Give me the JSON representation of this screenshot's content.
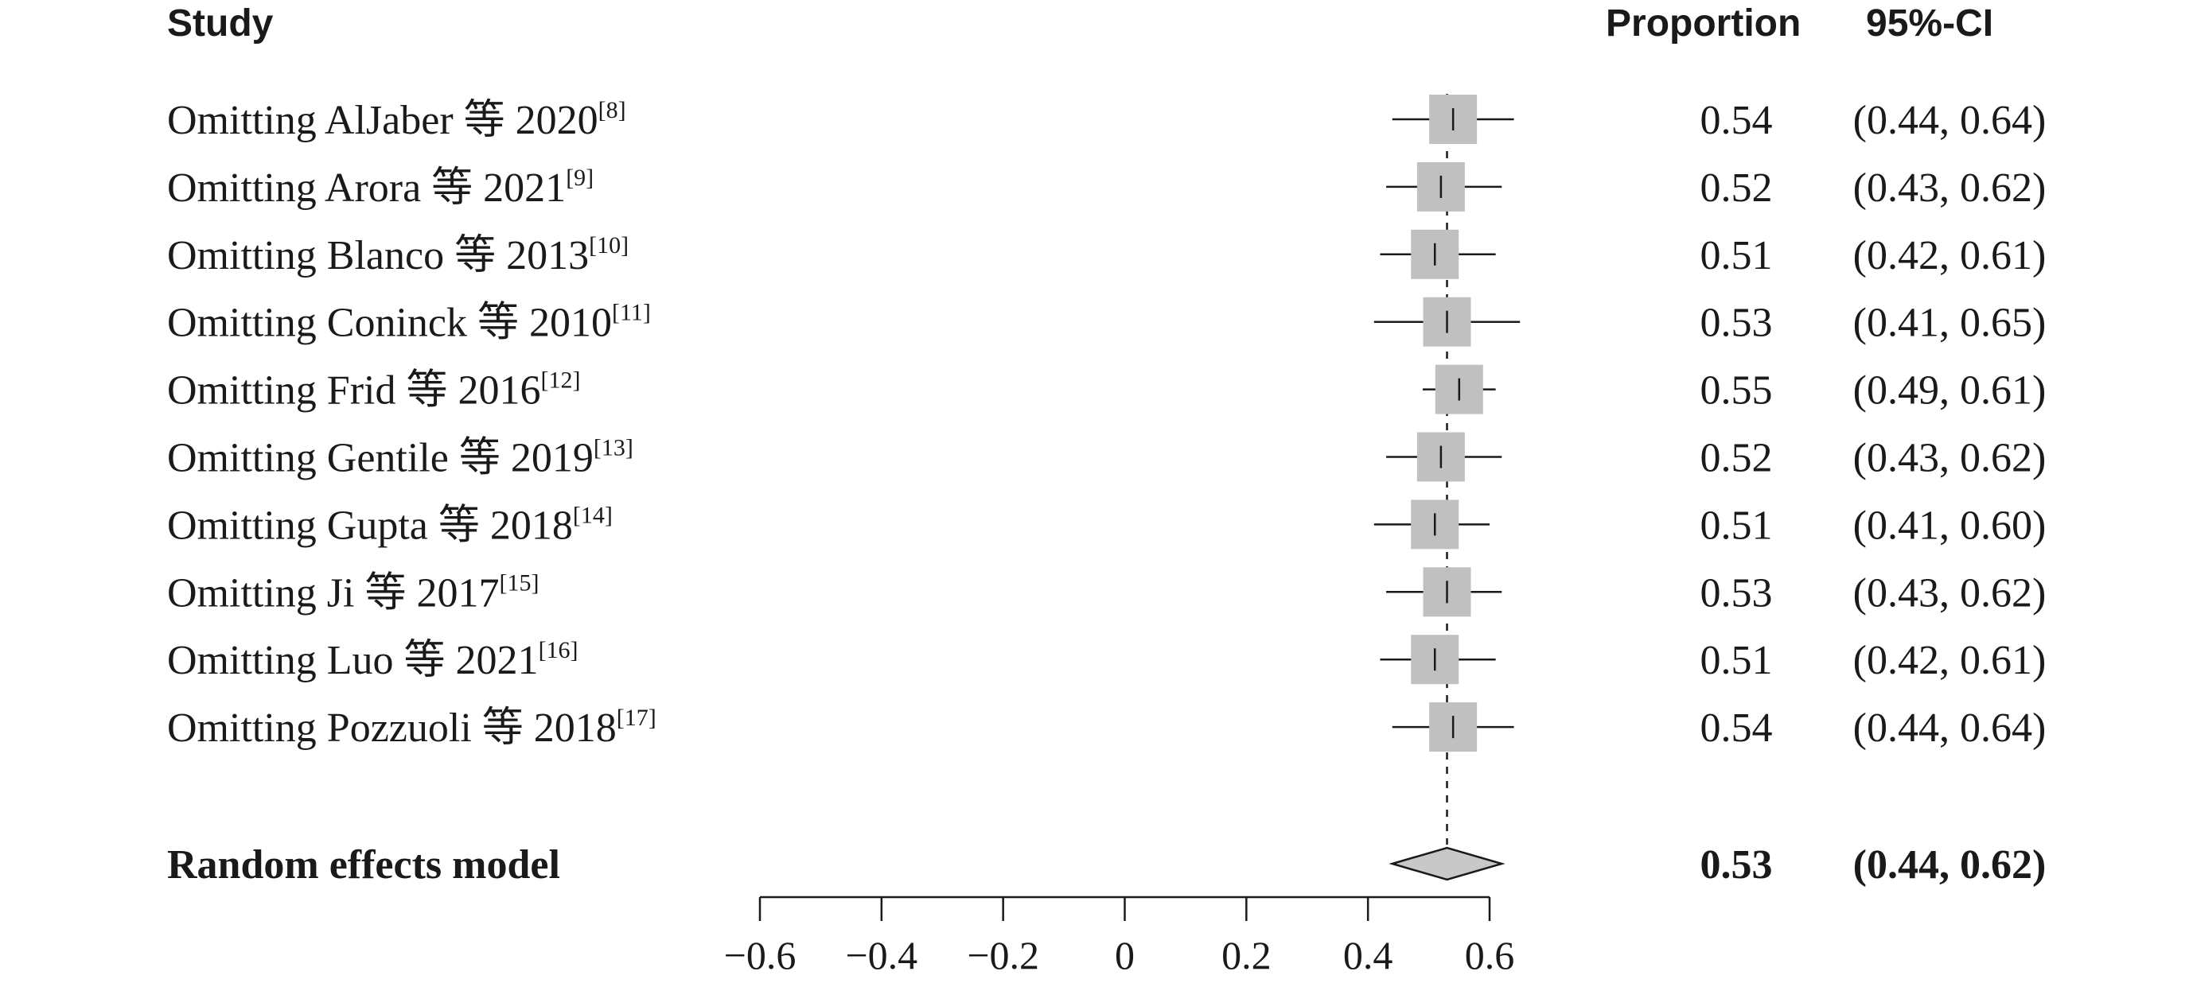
{
  "chart_data": {
    "type": "forest",
    "headers": {
      "study": "Study",
      "proportion": "Proportion",
      "ci": "95%-CI"
    },
    "studies": [
      {
        "label": "Omitting AlJaber 等 2020",
        "ref": "[8]",
        "proportion": 0.54,
        "lower": 0.44,
        "upper": 0.64,
        "proportion_text": "0.54",
        "ci_text": "(0.44, 0.64)"
      },
      {
        "label": "Omitting Arora 等 2021",
        "ref": "[9]",
        "proportion": 0.52,
        "lower": 0.43,
        "upper": 0.62,
        "proportion_text": "0.52",
        "ci_text": "(0.43, 0.62)"
      },
      {
        "label": "Omitting Blanco 等 2013",
        "ref": "[10]",
        "proportion": 0.51,
        "lower": 0.42,
        "upper": 0.61,
        "proportion_text": "0.51",
        "ci_text": "(0.42, 0.61)"
      },
      {
        "label": "Omitting Coninck 等 2010",
        "ref": "[11]",
        "proportion": 0.53,
        "lower": 0.41,
        "upper": 0.65,
        "proportion_text": "0.53",
        "ci_text": "(0.41, 0.65)"
      },
      {
        "label": "Omitting Frid 等 2016",
        "ref": "[12]",
        "proportion": 0.55,
        "lower": 0.49,
        "upper": 0.61,
        "proportion_text": "0.55",
        "ci_text": "(0.49, 0.61)"
      },
      {
        "label": "Omitting Gentile 等 2019",
        "ref": "[13]",
        "proportion": 0.52,
        "lower": 0.43,
        "upper": 0.62,
        "proportion_text": "0.52",
        "ci_text": "(0.43, 0.62)"
      },
      {
        "label": "Omitting Gupta 等 2018",
        "ref": "[14]",
        "proportion": 0.51,
        "lower": 0.41,
        "upper": 0.6,
        "proportion_text": "0.51",
        "ci_text": "(0.41, 0.60)"
      },
      {
        "label": "Omitting Ji 等 2017",
        "ref": "[15]",
        "proportion": 0.53,
        "lower": 0.43,
        "upper": 0.62,
        "proportion_text": "0.53",
        "ci_text": "(0.43, 0.62)"
      },
      {
        "label": "Omitting Luo 等 2021",
        "ref": "[16]",
        "proportion": 0.51,
        "lower": 0.42,
        "upper": 0.61,
        "proportion_text": "0.51",
        "ci_text": "(0.42, 0.61)"
      },
      {
        "label": "Omitting Pozzuoli 等 2018",
        "ref": "[17]",
        "proportion": 0.54,
        "lower": 0.44,
        "upper": 0.64,
        "proportion_text": "0.54",
        "ci_text": "(0.44, 0.64)"
      }
    ],
    "summary": {
      "label": "Random effects model",
      "proportion": 0.53,
      "lower": 0.44,
      "upper": 0.62,
      "proportion_text": "0.53",
      "ci_text": "(0.44, 0.62)"
    },
    "x_ticks": [
      -0.6,
      -0.4,
      -0.2,
      0,
      0.2,
      0.4,
      0.6
    ],
    "x_tick_labels": [
      "−0.6",
      "−0.4",
      "−0.2",
      "0",
      "0.2",
      "0.4",
      "0.6"
    ],
    "xlim": [
      -0.6,
      0.6
    ],
    "reference_line": 0.53,
    "grid": false,
    "colors": {
      "box": "#c0c0c0",
      "diamond": "#c8c8c8",
      "line": "#1a1a1a"
    }
  }
}
